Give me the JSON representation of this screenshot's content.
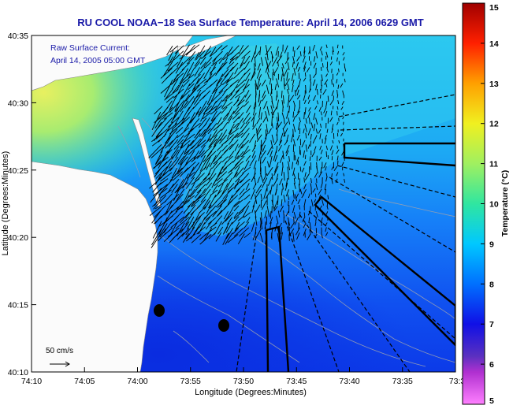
{
  "title": "RU COOL  NOAA−18  Sea Surface Temperature:  April 14, 2006 0629 GMT",
  "annotation": {
    "line1": "Raw Surface Current:",
    "line2": "April 14, 2005 05:00 GMT"
  },
  "scale_label": "50 cm/s",
  "axes": {
    "x_label": "Longitude (Degrees:Minutes)",
    "y_label": "Latitude (Degrees:Minutes)",
    "x_ticks": [
      "74:10",
      "74:05",
      "74:00",
      "73:55",
      "73:50",
      "73:45",
      "73:40",
      "73:35",
      "73:3"
    ],
    "y_ticks": [
      "40:35",
      "40:30",
      "40:25",
      "40:20",
      "40:15",
      "40:10"
    ]
  },
  "colorbar": {
    "label": "Temperature (°C)",
    "ticks": [
      "15",
      "14",
      "13",
      "12",
      "11",
      "10",
      "9",
      "8",
      "7",
      "6",
      "5"
    ],
    "min": 5,
    "max": 15
  },
  "colors": {
    "title": "#1a1aa8",
    "land": "#fbfbfb",
    "vectors": "#000000"
  }
}
